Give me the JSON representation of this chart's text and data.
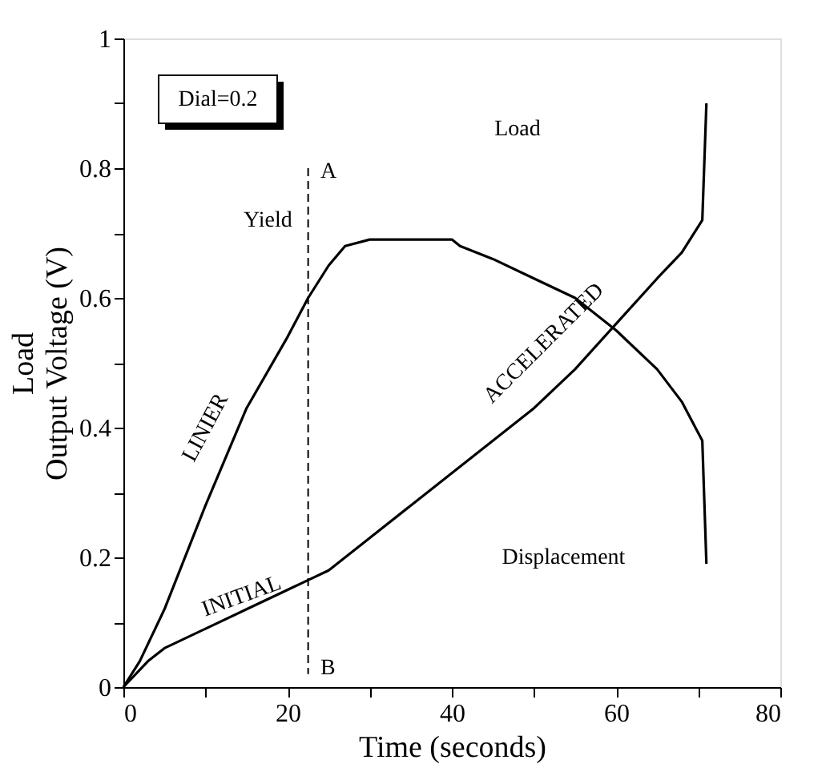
{
  "chart_data": {
    "type": "line",
    "xlabel": "Time (seconds)",
    "ylabel": "Load\nOutput Voltage (V)",
    "xlim": [
      0,
      80
    ],
    "ylim": [
      0,
      1
    ],
    "xticks": [
      0,
      {
        "value": 10,
        "label": null
      },
      20,
      {
        "value": 30,
        "label": null
      },
      40,
      {
        "value": 50,
        "label": null
      },
      60,
      {
        "value": 70,
        "label": null
      },
      80
    ],
    "yticks": [
      0,
      {
        "value": 0.1,
        "label": null
      },
      0.2,
      {
        "value": 0.3,
        "label": null
      },
      0.4,
      {
        "value": 0.5,
        "label": null
      },
      0.6,
      {
        "value": 0.7,
        "label": null
      },
      0.8,
      {
        "value": 0.9,
        "label": null
      },
      1
    ],
    "grid": false,
    "marker": "none",
    "line_style": "solid",
    "series": [
      {
        "color": "#000000",
        "x": [
          0,
          2,
          5,
          10,
          15,
          20,
          22.5,
          25,
          27,
          30,
          35,
          40,
          41,
          45,
          50,
          55,
          60,
          65,
          68,
          70.5,
          71
        ],
        "values": [
          0,
          0.04,
          0.12,
          0.28,
          0.43,
          0.54,
          0.6,
          0.65,
          0.68,
          0.69,
          0.69,
          0.69,
          0.68,
          0.66,
          0.63,
          0.6,
          0.55,
          0.49,
          0.44,
          0.38,
          0.19
        ]
      },
      {
        "color": "#000000",
        "x": [
          0,
          3,
          5,
          10,
          15,
          20,
          22.5,
          25,
          30,
          35,
          40,
          45,
          50,
          55,
          60,
          65,
          68,
          70.5,
          71
        ],
        "values": [
          0,
          0.04,
          0.06,
          0.09,
          0.12,
          0.15,
          0.165,
          0.18,
          0.23,
          0.28,
          0.33,
          0.38,
          0.43,
          0.49,
          0.56,
          0.63,
          0.67,
          0.72,
          0.9
        ]
      }
    ],
    "ref_lines": [
      {
        "axis": "x",
        "value": 22.5,
        "label": null,
        "color": "#000000",
        "line_style": "dashed"
      }
    ],
    "annotations": [
      "Dial=0.2",
      "Load",
      "Yield",
      "A",
      "B",
      "LINIER",
      "INITIAL",
      "ACCELERATED",
      "Displacement"
    ]
  }
}
